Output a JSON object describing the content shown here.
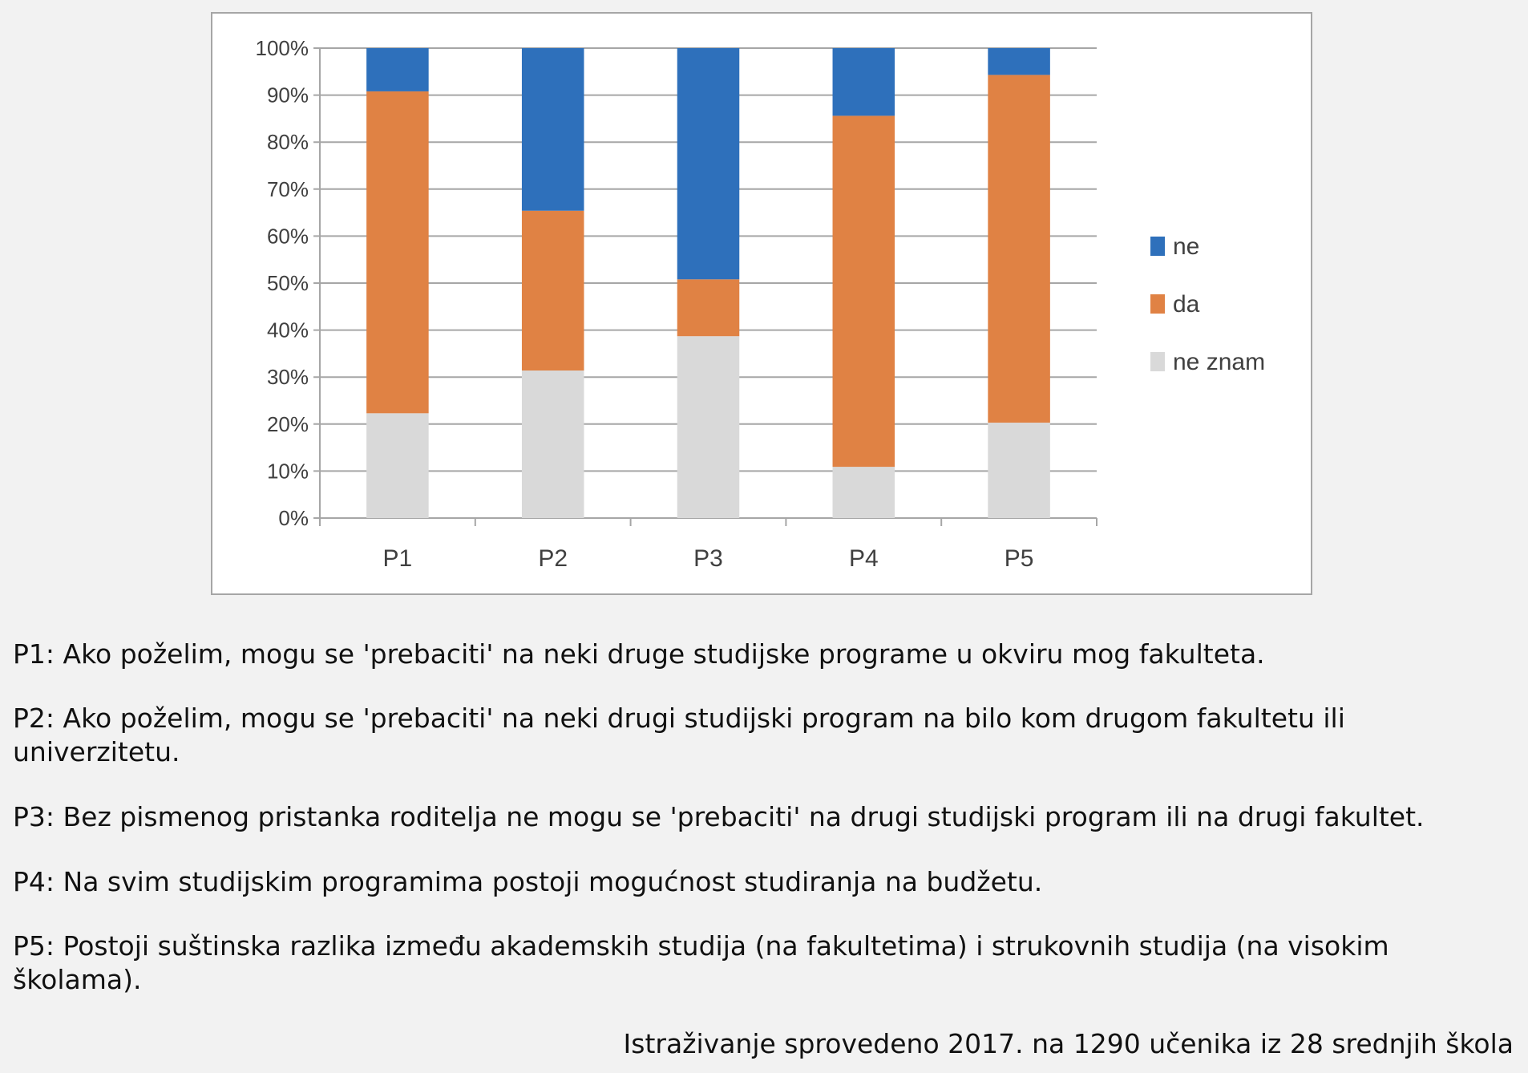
{
  "chart_data": {
    "type": "bar",
    "stacked": true,
    "title": "",
    "xlabel": "",
    "ylabel": "",
    "ylim": [
      0,
      100
    ],
    "yticks": [
      "0%",
      "10%",
      "20%",
      "30%",
      "40%",
      "50%",
      "60%",
      "70%",
      "80%",
      "90%",
      "100%"
    ],
    "categories": [
      "P1",
      "P2",
      "P3",
      "P4",
      "P5"
    ],
    "series": [
      {
        "name": "ne znam",
        "color": "#d9d9d9",
        "values": [
          22.3,
          31.4,
          38.7,
          10.9,
          20.3
        ]
      },
      {
        "name": "da",
        "color": "#e08244",
        "values": [
          68.5,
          34.0,
          12.1,
          74.7,
          74.0
        ]
      },
      {
        "name": "ne",
        "color": "#2e70bb",
        "values": [
          9.2,
          34.6,
          49.2,
          14.4,
          5.7
        ]
      }
    ],
    "legend": {
      "placement": "right",
      "order": [
        "ne",
        "da",
        "ne znam"
      ]
    },
    "grid": true
  },
  "notes": [
    "P1: Ako poželim, mogu se 'prebaciti' na neki druge studijske programe u okviru mog fakulteta.",
    "P2: Ako poželim, mogu se 'prebaciti' na neki drugi studijski program na bilo kom drugom fakultetu ili univerzitetu.",
    "P3: Bez pismenog pristanka roditelja ne mogu se 'prebaciti' na drugi studijski program ili na drugi fakultet.",
    "P4: Na svim studijskim programima postoji mogućnost studiranja na budžetu.",
    "P5: Postoji suštinska razlika između akademskih studija (na fakultetima) i strukovnih studija (na visokim školama)."
  ],
  "source": "Istraživanje sprovedeno 2017. na 1290 učenika iz 28 srednjih škola"
}
